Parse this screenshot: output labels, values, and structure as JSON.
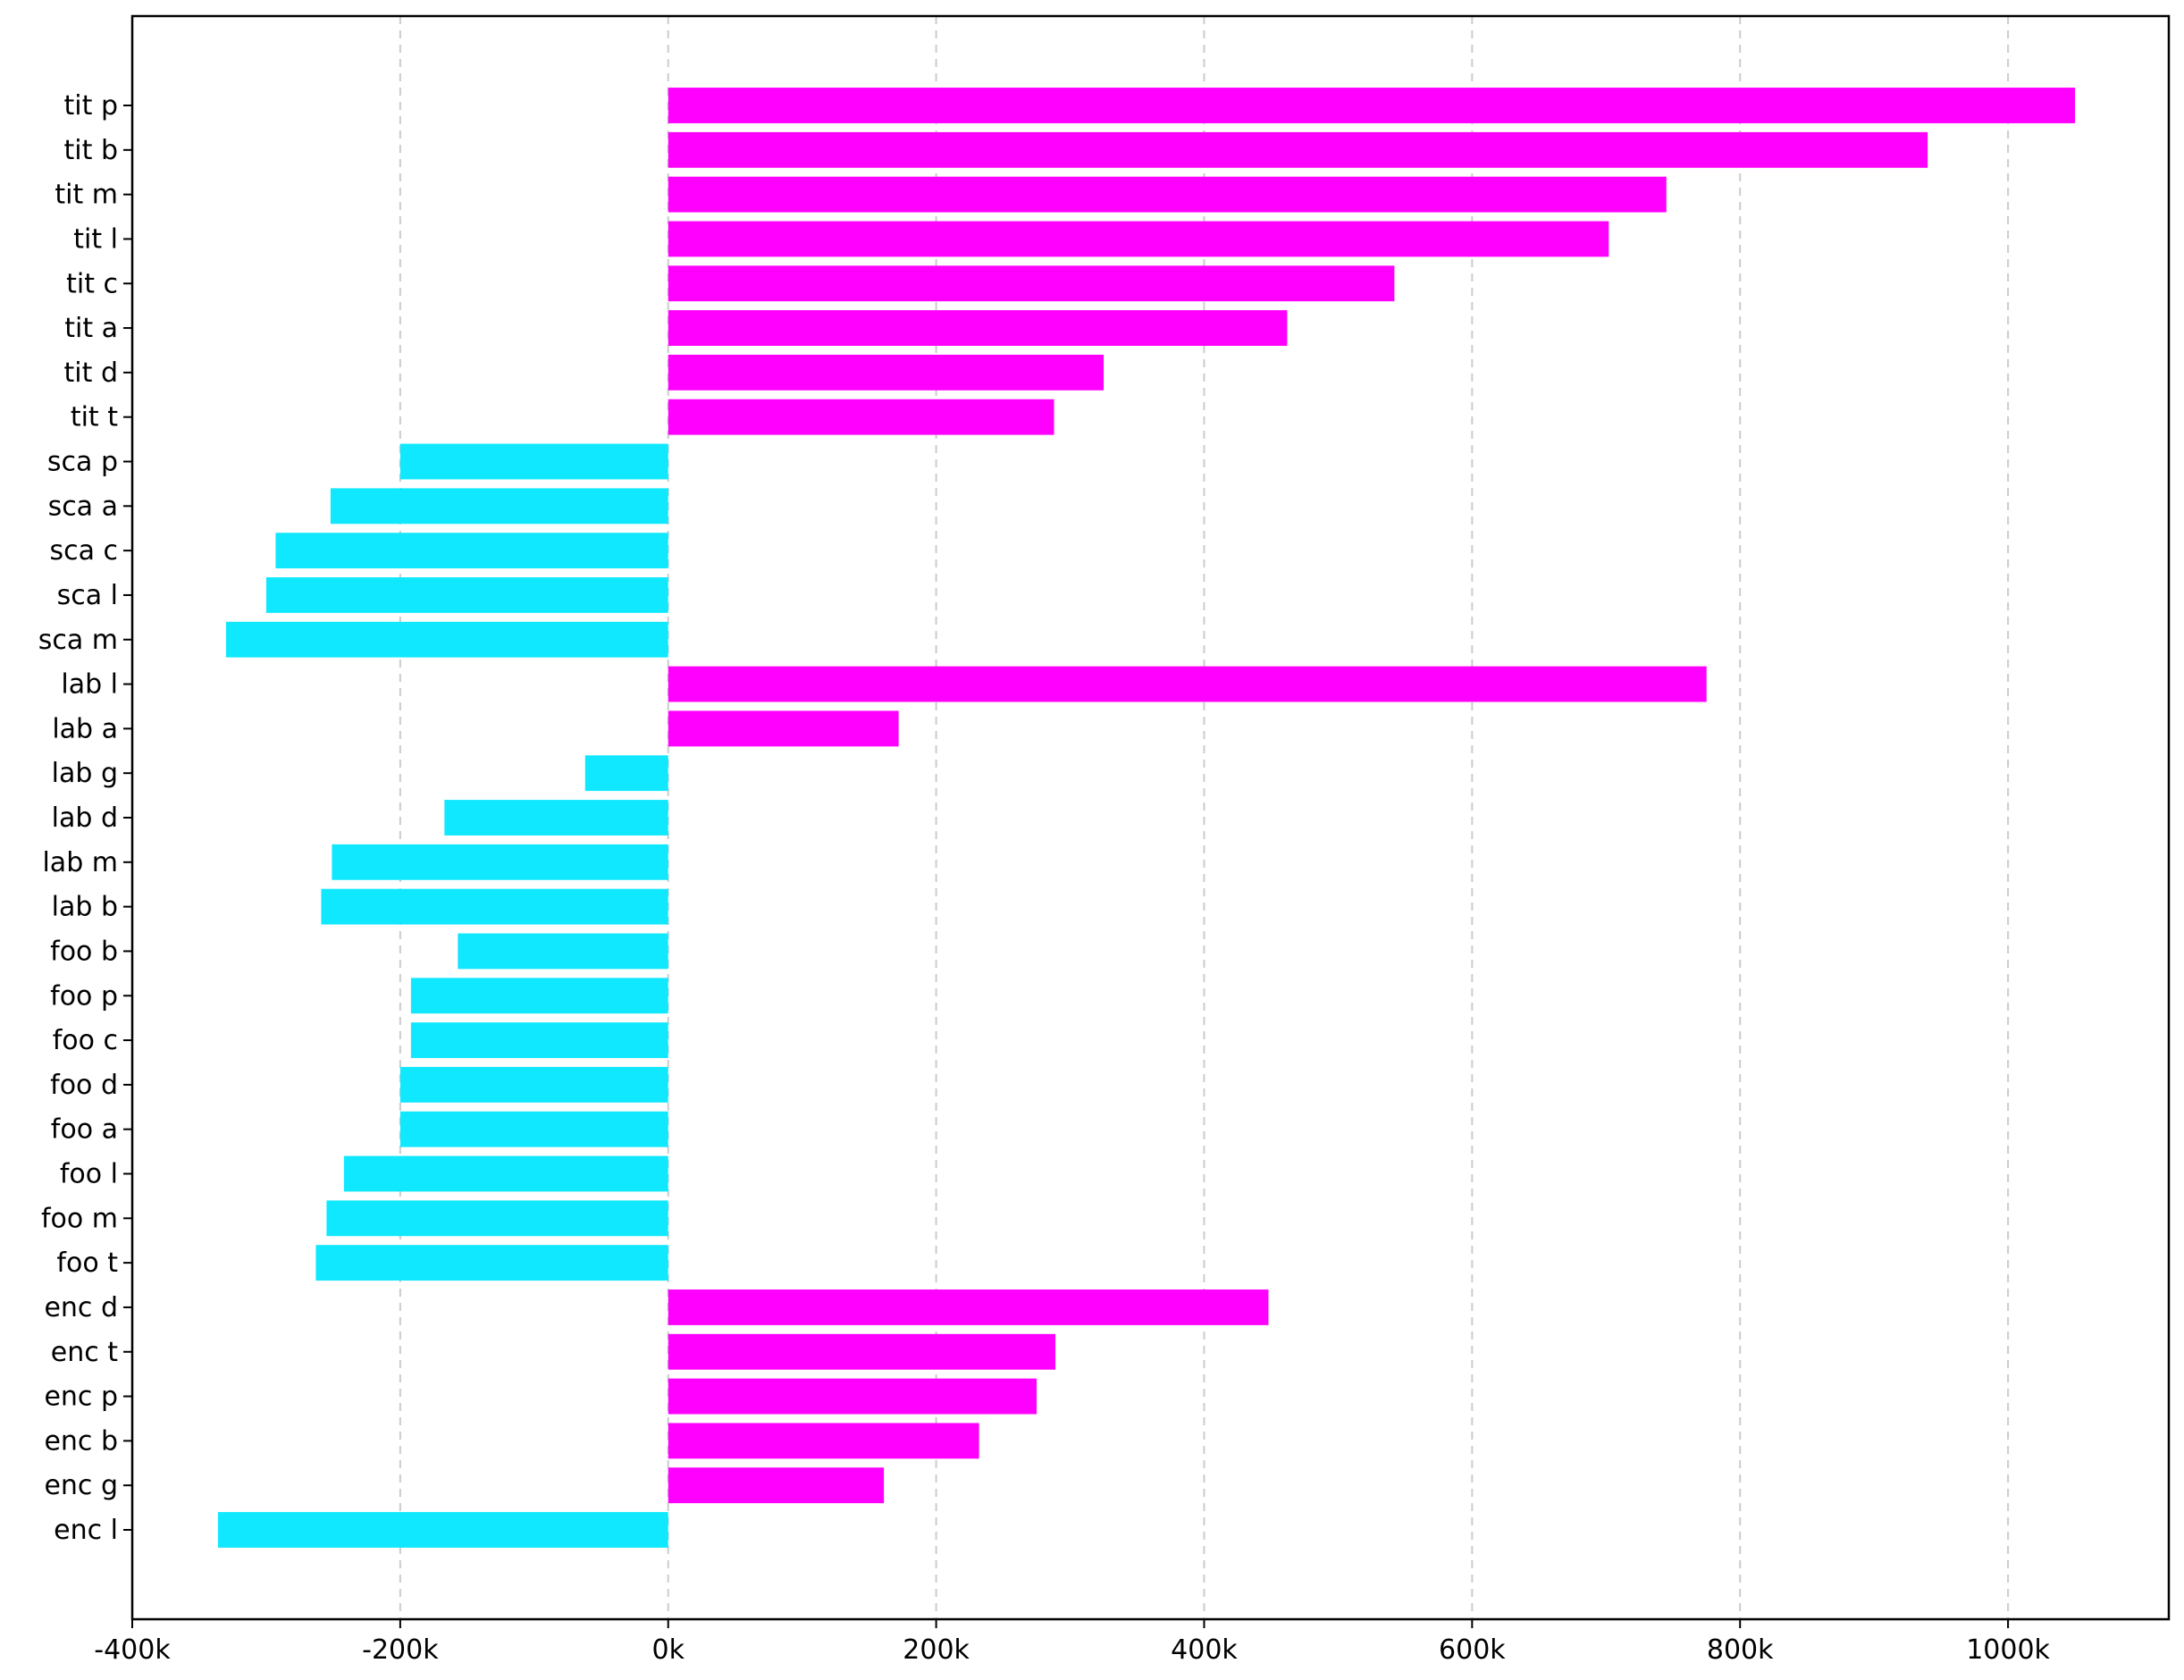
{
  "chart_data": {
    "type": "bar",
    "orientation": "horizontal",
    "title": "",
    "xlabel": "",
    "ylabel": "",
    "xlim": [
      -400000,
      1120000
    ],
    "x_ticks": [
      -400000,
      -200000,
      0,
      200000,
      400000,
      600000,
      800000,
      1000000
    ],
    "x_tick_labels": [
      "-400k",
      "-200k",
      "0k",
      "200k",
      "400k",
      "600k",
      "800k",
      "1000k"
    ],
    "grid": "x-dashed",
    "legend": "none",
    "colors": {
      "positive": "#ff00ff",
      "negative": "#10e8ff"
    },
    "categories": [
      "tit p",
      "tit b",
      "tit m",
      "tit l",
      "tit c",
      "tit a",
      "tit d",
      "tit t",
      "sca p",
      "sca a",
      "sca c",
      "sca l",
      "sca m",
      "lab l",
      "lab a",
      "lab g",
      "lab d",
      "lab m",
      "lab b",
      "foo b",
      "foo p",
      "foo c",
      "foo d",
      "foo a",
      "foo l",
      "foo m",
      "foo t",
      "enc d",
      "enc t",
      "enc p",
      "enc b",
      "enc g",
      "enc l"
    ],
    "values": [
      1050000,
      940000,
      745000,
      702000,
      542000,
      462000,
      325000,
      288000,
      -200000,
      -252000,
      -293000,
      -300000,
      -330000,
      775000,
      172000,
      -62000,
      -167000,
      -251000,
      -259000,
      -157000,
      -192000,
      -192000,
      -200000,
      -200000,
      -242000,
      -255000,
      -263000,
      448000,
      289000,
      275000,
      232000,
      161000,
      -336000
    ]
  }
}
